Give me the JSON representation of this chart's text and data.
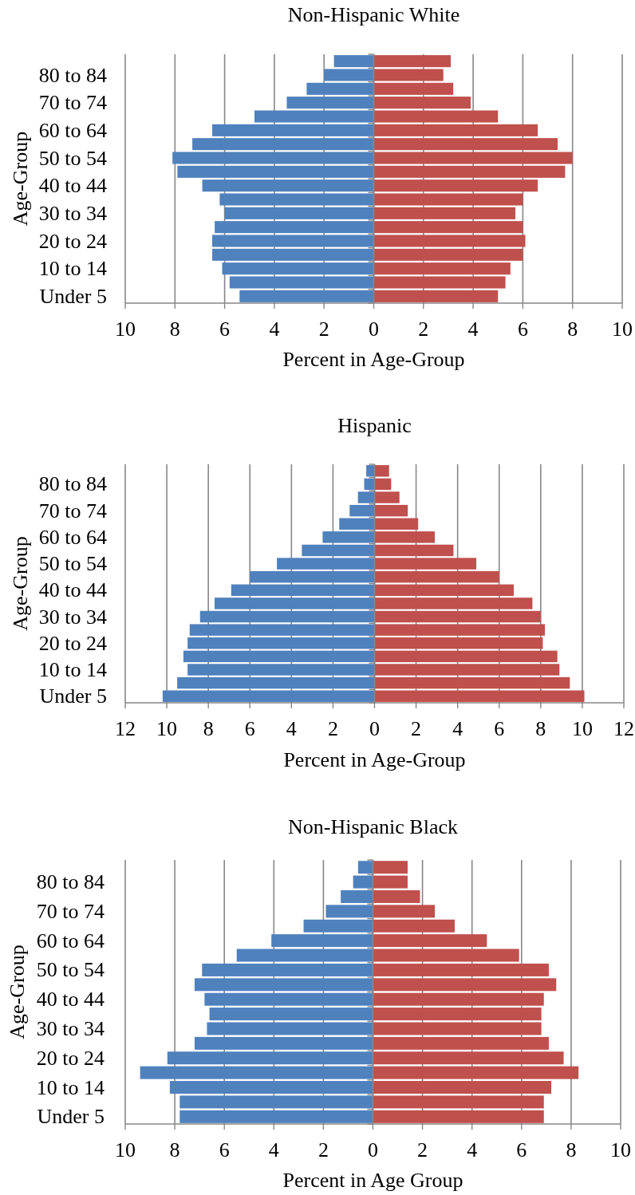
{
  "chart_data": [
    {
      "type": "bar",
      "orientation": "horizontal",
      "stacked": true,
      "title": "Non-Hispanic White",
      "xlabel": "Percent in Age-Group",
      "ylabel": "Age-Group",
      "grid": "x",
      "categories": [
        null,
        "80 to 84",
        null,
        "70 to 74",
        null,
        "60 to 64",
        null,
        "50 to 54",
        null,
        "40 to 44",
        null,
        "30 to 34",
        null,
        "20 to 24",
        null,
        "10 to 14",
        null,
        "Under 5"
      ],
      "series": [
        {
          "color": "#4f81bd",
          "values": [
            -1.6,
            -2.0,
            -2.7,
            -3.5,
            -4.8,
            -6.5,
            -7.3,
            -8.1,
            -7.9,
            -6.9,
            -6.2,
            -6.0,
            -6.4,
            -6.5,
            -6.5,
            -6.1,
            -5.8,
            -5.4
          ]
        },
        {
          "color": "#c0504d",
          "values": [
            3.1,
            2.8,
            3.2,
            3.9,
            5.0,
            6.6,
            7.4,
            8.0,
            7.7,
            6.6,
            6.0,
            5.7,
            6.0,
            6.1,
            6.0,
            5.5,
            5.3,
            5.0
          ]
        }
      ],
      "xlim": [
        -10,
        10
      ],
      "xticks": [
        {
          "value": -10,
          "label": "10"
        },
        {
          "value": -8,
          "label": "8"
        },
        {
          "value": -6,
          "label": "6"
        },
        {
          "value": -4,
          "label": "4"
        },
        {
          "value": -2,
          "label": "2"
        },
        0,
        2,
        4,
        6,
        8,
        10
      ]
    },
    {
      "type": "bar",
      "orientation": "horizontal",
      "stacked": true,
      "title": "Hispanic",
      "xlabel": "Percent in Age-Group",
      "ylabel": "Age-Group",
      "grid": "x",
      "categories": [
        null,
        "80 to 84",
        null,
        "70 to 74",
        null,
        "60 to 64",
        null,
        "50 to 54",
        null,
        "40 to 44",
        null,
        "30 to 34",
        null,
        "20 to 24",
        null,
        "10 to 14",
        null,
        "Under 5"
      ],
      "series": [
        {
          "color": "#4f81bd",
          "values": [
            -0.4,
            -0.5,
            -0.8,
            -1.2,
            -1.7,
            -2.5,
            -3.5,
            -4.7,
            -6.0,
            -6.9,
            -7.7,
            -8.4,
            -8.9,
            -9.0,
            -9.2,
            -9.0,
            -9.5,
            -10.2
          ]
        },
        {
          "color": "#c0504d",
          "values": [
            0.7,
            0.8,
            1.2,
            1.6,
            2.1,
            2.9,
            3.8,
            4.9,
            6.0,
            6.7,
            7.6,
            8.0,
            8.2,
            8.1,
            8.8,
            8.9,
            9.4,
            10.1
          ]
        }
      ],
      "xlim": [
        -12,
        12
      ],
      "xticks": [
        {
          "value": -12,
          "label": "12"
        },
        {
          "value": -10,
          "label": "10"
        },
        {
          "value": -8,
          "label": "8"
        },
        {
          "value": -6,
          "label": "6"
        },
        {
          "value": -4,
          "label": "4"
        },
        {
          "value": -2,
          "label": "2"
        },
        0,
        2,
        4,
        6,
        8,
        10,
        12
      ]
    },
    {
      "type": "bar",
      "orientation": "horizontal",
      "stacked": true,
      "title": "Non-Hispanic Black",
      "xlabel": "Percent in Age Group",
      "ylabel": "Age-Group",
      "grid": "x",
      "categories": [
        null,
        "80 to 84",
        null,
        "70 to 74",
        null,
        "60 to 64",
        null,
        "50 to 54",
        null,
        "40 to 44",
        null,
        "30 to 34",
        null,
        "20 to 24",
        null,
        "10 to 14",
        null,
        "Under 5"
      ],
      "series": [
        {
          "color": "#4f81bd",
          "values": [
            -0.6,
            -0.8,
            -1.3,
            -1.9,
            -2.8,
            -4.1,
            -5.5,
            -6.9,
            -7.2,
            -6.8,
            -6.6,
            -6.7,
            -7.2,
            -8.3,
            -9.4,
            -8.2,
            -7.8,
            -7.8
          ]
        },
        {
          "color": "#c0504d",
          "values": [
            1.4,
            1.4,
            1.9,
            2.5,
            3.3,
            4.6,
            5.9,
            7.1,
            7.4,
            6.9,
            6.8,
            6.8,
            7.1,
            7.7,
            8.3,
            7.2,
            6.9,
            6.9
          ]
        }
      ],
      "xlim": [
        -10,
        10
      ],
      "xticks": [
        {
          "value": -10,
          "label": "10"
        },
        {
          "value": -8,
          "label": "8"
        },
        {
          "value": -6,
          "label": "6"
        },
        {
          "value": -4,
          "label": "4"
        },
        {
          "value": -2,
          "label": "2"
        },
        0,
        2,
        4,
        6,
        8,
        10
      ]
    }
  ]
}
